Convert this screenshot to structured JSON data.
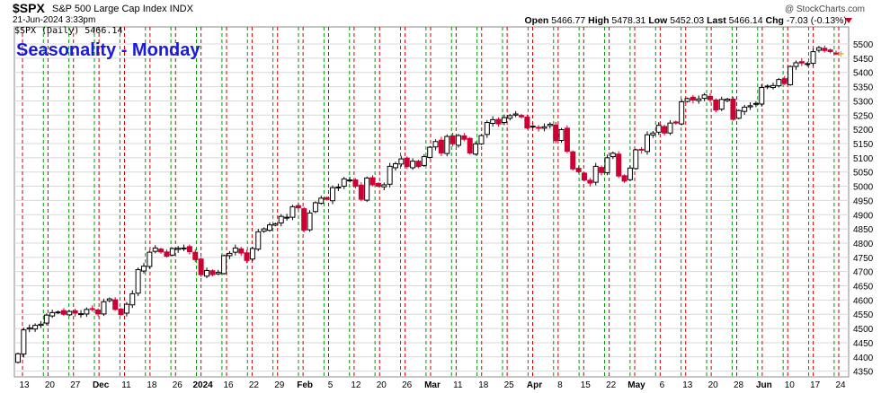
{
  "header": {
    "symbol": "$SPX",
    "description": "S&P 500 Large Cap Index INDX",
    "datetime": "21-Jun-2024 3:33pm",
    "copyright": "@ StockCharts.com",
    "open_label": "Open",
    "open": "5466.77",
    "high_label": "High",
    "high": "5478.31",
    "low_label": "Low",
    "low": "5452.03",
    "last_label": "Last",
    "last": "5466.14",
    "chg_label": "Chg",
    "chg": "-7.03 (-0.13%)"
  },
  "legend": "$SPX (Daily) 5466.14",
  "annotation": "Seasonality - Monday",
  "colors": {
    "up": "#000000",
    "down": "#cc0033",
    "red_line": "#cc0000",
    "green_line": "#009900",
    "title": "#1a1adc",
    "grid": "#d8d8d8"
  },
  "chart_data": {
    "type": "candlestick",
    "title": "Seasonality - Monday",
    "ylim": [
      4330,
      5560
    ],
    "y_ticks": [
      4350,
      4400,
      4450,
      4500,
      4550,
      4600,
      4650,
      4700,
      4750,
      4800,
      4850,
      4900,
      4950,
      5000,
      5050,
      5100,
      5150,
      5200,
      5250,
      5300,
      5350,
      5400,
      5450,
      5500
    ],
    "x_tick_labels": [
      "13",
      "20",
      "27",
      "Dec",
      "11",
      "18",
      "26",
      "2024",
      "16",
      "22",
      "29",
      "Feb",
      "5",
      "12",
      "20",
      "26",
      "Mar",
      "11",
      "18",
      "25",
      "Apr",
      "8",
      "15",
      "22",
      "May",
      "6",
      "13",
      "20",
      "28",
      "Jun",
      "10",
      "17",
      "24"
    ],
    "grid": true,
    "vertical_lines": [
      "red-dashed at first trading day of each week",
      "green-dashed at last trading day of each week"
    ],
    "last_value": 5466.14,
    "closes": [
      4411,
      4495,
      4502,
      4511,
      4515,
      4547,
      4556,
      4558,
      4550,
      4560,
      4554,
      4552,
      4567,
      4569,
      4551,
      4594,
      4604,
      4567,
      4549,
      4585,
      4622,
      4707,
      4719,
      4768,
      4783,
      4769,
      4754,
      4781,
      4782,
      4783,
      4770,
      4742,
      4689,
      4704,
      4689,
      4697,
      4756,
      4764,
      4783,
      4765,
      4739,
      4781,
      4840,
      4850,
      4864,
      4868,
      4894,
      4891,
      4928,
      4924,
      4846,
      4906,
      4942,
      4958,
      4954,
      4995,
      4997,
      5026,
      5022,
      5000,
      4954,
      5029,
      5005,
      5000,
      5005,
      5070,
      5079,
      5096,
      5069,
      5088,
      5069,
      5104,
      5137,
      5157,
      5117,
      5175,
      5149,
      5178,
      5165,
      5117,
      5149,
      5178,
      5224,
      5234,
      5219,
      5241,
      5248,
      5254,
      5244,
      5205,
      5211,
      5204,
      5209,
      5218,
      5160,
      5199,
      5123,
      5061,
      5051,
      5022,
      5011,
      5070,
      5048,
      5100,
      5116,
      5036,
      5018,
      5064,
      5128,
      5127,
      5181,
      5187,
      5214,
      5187,
      5222,
      5222,
      5297,
      5308,
      5303,
      5307,
      5321,
      5304,
      5268,
      5305,
      5306,
      5235,
      5266,
      5278,
      5283,
      5291,
      5347,
      5352,
      5354,
      5375,
      5361,
      5421,
      5434,
      5433,
      5431,
      5473,
      5487,
      5477,
      5473,
      5466
    ]
  },
  "axis_y_labels": [
    "4350",
    "4400",
    "4450",
    "4500",
    "4550",
    "4600",
    "4650",
    "4700",
    "4750",
    "4800",
    "4850",
    "4900",
    "4950",
    "5000",
    "5050",
    "5100",
    "5150",
    "5200",
    "5250",
    "5300",
    "5350",
    "5400",
    "5450",
    "5500"
  ]
}
